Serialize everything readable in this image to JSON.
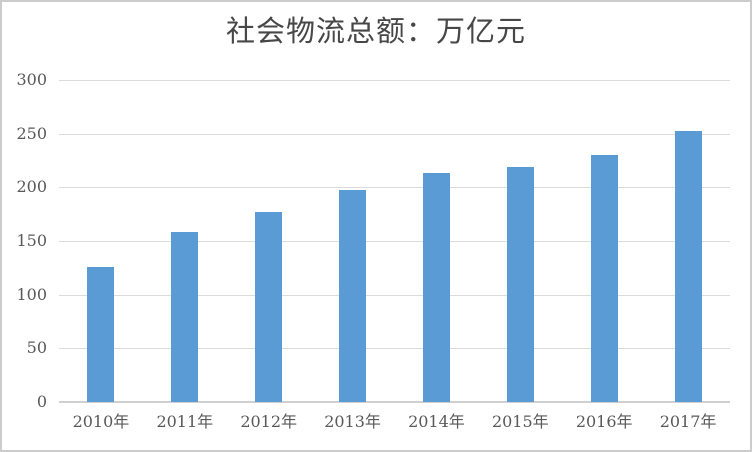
{
  "frame": {
    "border_color": "#cccccc",
    "background": "#ffffff"
  },
  "chart_data": {
    "type": "bar",
    "title": "社会物流总额：万亿元",
    "categories": [
      "2010年",
      "2011年",
      "2012年",
      "2013年",
      "2014年",
      "2015年",
      "2016年",
      "2017年"
    ],
    "values": [
      125.4,
      158.4,
      177.3,
      197.8,
      213.5,
      219.2,
      229.7,
      252.8
    ],
    "xlabel": "",
    "ylabel": "",
    "ylim": [
      0,
      300
    ],
    "yticks": [
      0,
      50,
      100,
      150,
      200,
      250,
      300
    ],
    "grid": true,
    "legend": false,
    "colors": {
      "bar": "#5B9BD5",
      "gridline": "#dbdbdb",
      "axis_line": "#d0d0d0",
      "tick_label": "#595959",
      "title": "#474747"
    }
  }
}
